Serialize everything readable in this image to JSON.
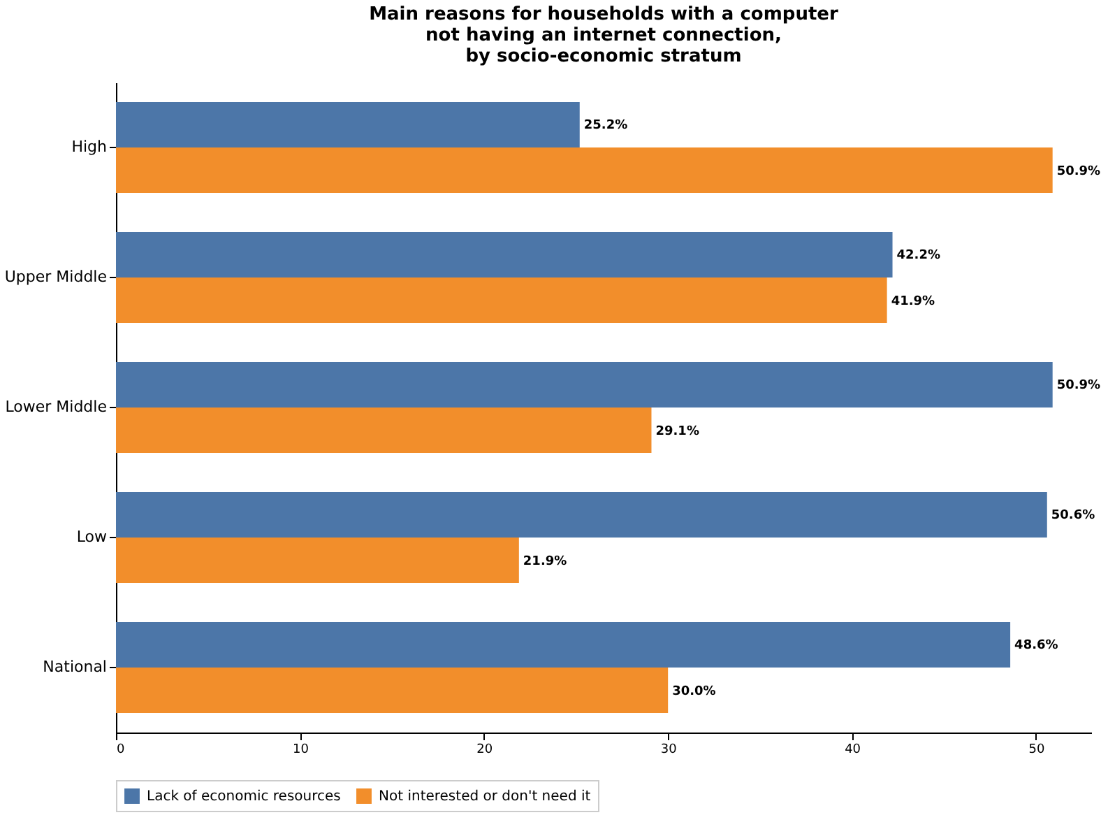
{
  "chart_data": {
    "type": "bar",
    "orientation": "horizontal",
    "title": "Main reasons for households with a computer\nnot having an internet connection,\nby socio-economic stratum",
    "categories": [
      "High",
      "Upper Middle",
      "Lower Middle",
      "Low",
      "National"
    ],
    "series": [
      {
        "name": "Lack of economic resources",
        "color": "#4c76a8",
        "values": [
          25.2,
          42.2,
          50.9,
          50.6,
          48.6
        ],
        "value_labels": [
          "25.2%",
          "42.2%",
          "50.9%",
          "50.6%",
          "48.6%"
        ]
      },
      {
        "name": "Not interested or don't need it",
        "color": "#f28e2b",
        "values": [
          50.9,
          41.9,
          29.1,
          21.9,
          30.0
        ],
        "value_labels": [
          "50.9%",
          "41.9%",
          "29.1%",
          "21.9%",
          "30.0%"
        ]
      }
    ],
    "xlim": [
      0,
      53
    ],
    "xticks": [
      0,
      10,
      20,
      30,
      40,
      50
    ],
    "grid": false,
    "legend": "bottom"
  }
}
